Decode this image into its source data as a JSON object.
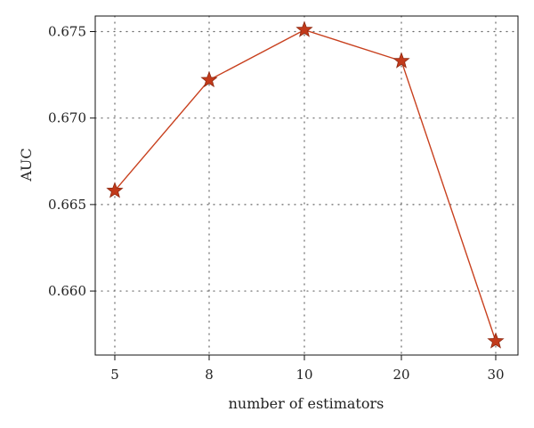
{
  "chart_data": {
    "type": "line",
    "title": "",
    "xlabel": "number of estimators",
    "ylabel": "AUC",
    "categories": [
      "5",
      "8",
      "10",
      "20",
      "30"
    ],
    "series": [
      {
        "values": [
          0.6658,
          0.6722,
          0.6751,
          0.6733,
          0.6571
        ]
      }
    ],
    "y_ticks": [
      0.66,
      0.665,
      0.67,
      0.675
    ],
    "y_tick_labels": [
      "0.660",
      "0.665",
      "0.670",
      "0.675"
    ],
    "ylim": [
      0.6563,
      0.6759
    ],
    "grid": true,
    "legend": "none",
    "marker": "star",
    "colors": {
      "line": "#c8401e",
      "marker_fill": "#c23a1b",
      "marker_stroke": "#8e2a12"
    }
  }
}
